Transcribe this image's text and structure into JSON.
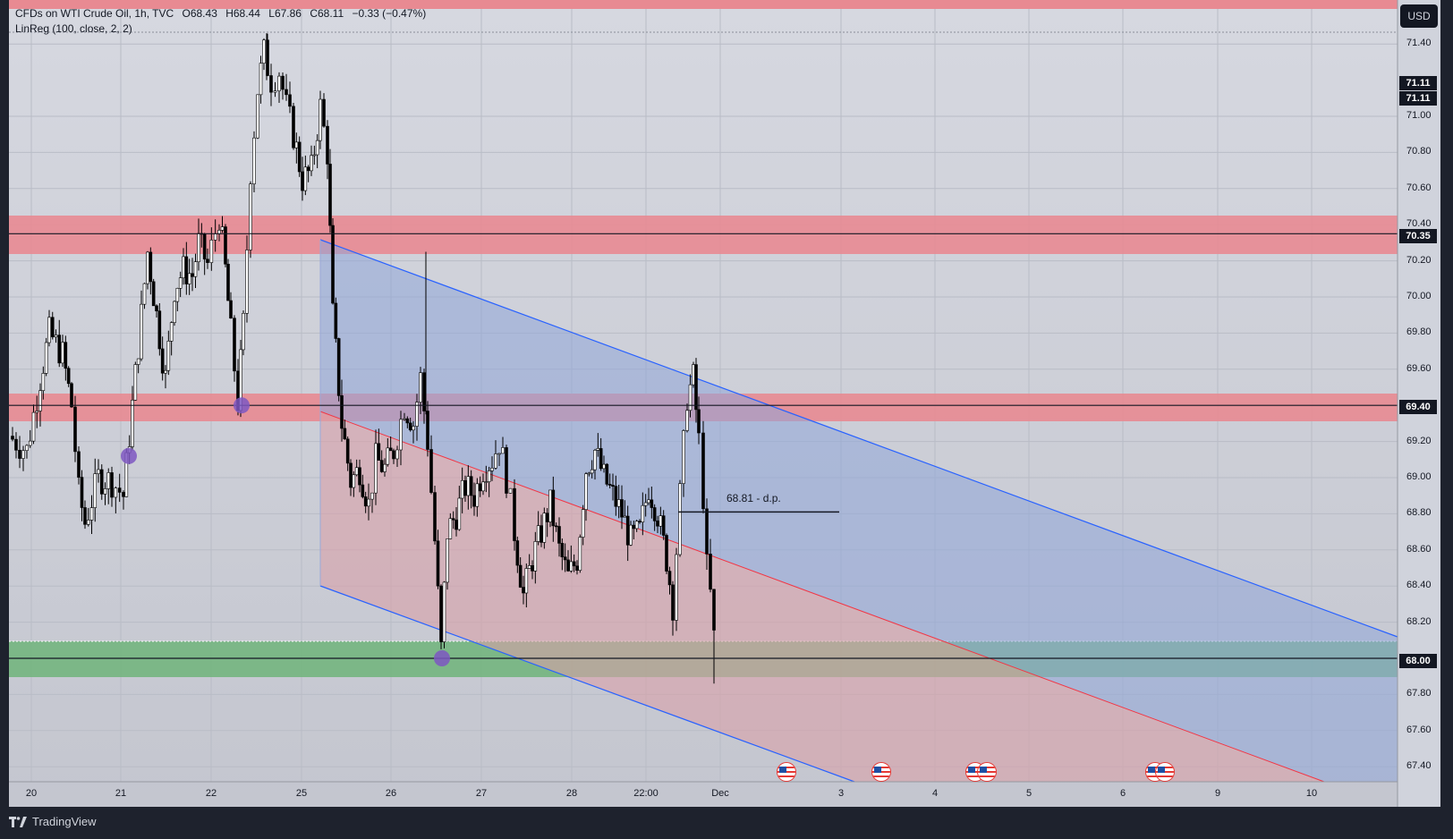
{
  "header": {
    "symbol": "CFDs on WTI Crude Oil, 1h, TVC",
    "open": "O68.43",
    "high": "H68.44",
    "low": "L67.86",
    "close": "C68.11",
    "change": "−0.33 (−0.47%)",
    "indicator": "LinReg (100, close, 2, 2)"
  },
  "currency_button": "USD",
  "price_scale": {
    "ticks": [
      "71.40",
      "71.00",
      "70.80",
      "70.60",
      "70.40",
      "70.20",
      "70.00",
      "69.80",
      "69.60",
      "69.20",
      "69.00",
      "68.80",
      "68.60",
      "68.40",
      "68.20",
      "67.80",
      "67.60",
      "67.40"
    ],
    "tags": [
      "71.11",
      "71.11",
      "70.35",
      "69.40",
      "68.00"
    ]
  },
  "time_scale": {
    "labels": [
      "20",
      "21",
      "22",
      "25",
      "26",
      "27",
      "28",
      "22:00",
      "Dec",
      "3",
      "4",
      "5",
      "6",
      "9",
      "10"
    ]
  },
  "annotations": {
    "dp_label": "68.81 - d.p."
  },
  "branding": {
    "logo_text": "TradingView"
  },
  "colors": {
    "chart_bg": "#cfd2dc",
    "resistance_zone": "#e88a92",
    "support_zone": "#6fb47a",
    "channel_upper_fill": "#8fa5d8",
    "channel_lower_fill": "#d9a0a8",
    "channel_line": "#2962ff",
    "midline": "#f23645",
    "pivot_marker": "#7e57c2"
  }
}
